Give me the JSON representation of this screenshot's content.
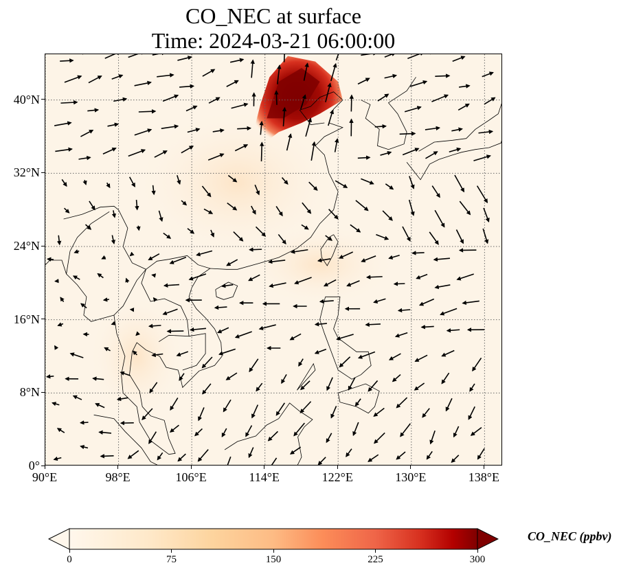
{
  "title_line1": "CO_NEC at surface",
  "title_line2": "Time: 2024-03-21 06:00:00",
  "map": {
    "projection": "PlateCarree",
    "lon_range": [
      90,
      140
    ],
    "lat_range": [
      0,
      45
    ],
    "gridlines": "dotted",
    "lon_ticks": [
      {
        "value": 90,
        "label": "90°E"
      },
      {
        "value": 98,
        "label": "98°E"
      },
      {
        "value": 106,
        "label": "106°E"
      },
      {
        "value": 114,
        "label": "114°E"
      },
      {
        "value": 122,
        "label": "122°E"
      },
      {
        "value": 130,
        "label": "130°E"
      },
      {
        "value": 138,
        "label": "138°E"
      }
    ],
    "lat_ticks": [
      {
        "value": 0,
        "label": "0°"
      },
      {
        "value": 8,
        "label": "8°N"
      },
      {
        "value": 16,
        "label": "16°N"
      },
      {
        "value": 24,
        "label": "24°N"
      },
      {
        "value": 32,
        "label": "32°N"
      },
      {
        "value": 40,
        "label": "40°N"
      }
    ],
    "overlay": "wind vectors (black arrows)",
    "plume": "high CO_NEC (dark red, >300 ppbv) over North China Plain, ~113-120°E, 35-44°N"
  },
  "colorbar": {
    "label": "CO_NEC (ppbv)",
    "min": 0,
    "max": 300,
    "extend": "both",
    "colormap": "OrRd",
    "ticks": [
      {
        "value": 0,
        "label": "0"
      },
      {
        "value": 75,
        "label": "75"
      },
      {
        "value": 150,
        "label": "150"
      },
      {
        "value": 225,
        "label": "225"
      },
      {
        "value": 300,
        "label": "300"
      }
    ],
    "colors": {
      "low": "#fff7ec",
      "mid": "#fdbb84",
      "high": "#d7301f",
      "max": "#7f0000"
    }
  }
}
